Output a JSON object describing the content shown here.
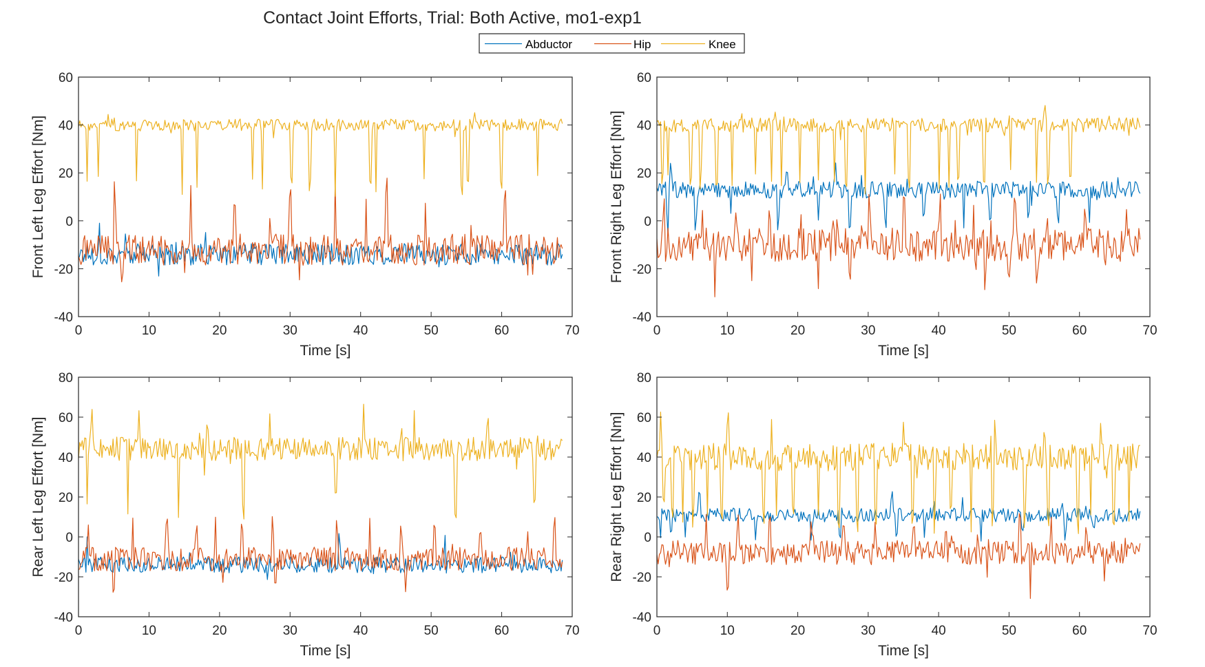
{
  "chart_data": {
    "type": "line",
    "title": "Contact Joint Efforts,  Trial: Both Active, mo1-exp1",
    "legend": {
      "placement": "top-center",
      "entries": [
        {
          "name": "Abductor",
          "color": "#0072BD"
        },
        {
          "name": "Hip",
          "color": "#D95319"
        },
        {
          "name": "Knee",
          "color": "#EDB120"
        }
      ]
    },
    "panels": [
      {
        "ylabel": "Front Left Leg Effort  [Nm]",
        "xlabel": "Time [s]",
        "xlim": [
          0,
          70
        ],
        "ylim": [
          -40,
          60
        ],
        "xticks": [
          "0",
          "10",
          "20",
          "30",
          "40",
          "50",
          "60",
          "70"
        ],
        "yticks": [
          "60",
          "40",
          "20",
          "0",
          "-20",
          "-40"
        ],
        "grid": false,
        "series": [
          {
            "name": "Abductor",
            "mean": -14,
            "amp": 4.5,
            "dips": [],
            "spikes": [
              3
            ],
            "dipDepth": 0,
            "spikeHeight": 12
          },
          {
            "name": "Hip",
            "mean": -12,
            "amp": 6.5,
            "dips": [
              6.2,
              63.7
            ],
            "spikes": [
              5.2,
              15.9,
              22.1,
              30.0,
              36.4,
              40.8,
              43.7,
              49.2,
              60.5
            ],
            "dipDepth": 16,
            "spikeHeight": 22
          },
          {
            "name": "Knee",
            "mean": 40,
            "amp": 2.5,
            "dips": [
              1.2,
              2.8,
              8.2,
              14.7,
              16.8,
              24.7,
              26.1,
              30.2,
              32.8,
              36.4,
              41.4,
              42.2,
              49.0,
              54.3,
              55.2,
              59.9,
              65.1
            ],
            "spikes": [],
            "dipDepth": 25,
            "spikeHeight": 0
          }
        ]
      },
      {
        "ylabel": "Front Right Leg Effort  [Nm]",
        "xlabel": "Time [s]",
        "xlim": [
          0,
          70
        ],
        "ylim": [
          -40,
          60
        ],
        "xticks": [
          "0",
          "10",
          "20",
          "30",
          "40",
          "50",
          "60",
          "70"
        ],
        "yticks": [
          "60",
          "40",
          "20",
          "0",
          "-20",
          "-40"
        ],
        "grid": false,
        "series": [
          {
            "name": "Abductor",
            "mean": 13,
            "amp": 3.5,
            "dips": [
              1.5,
              5.5,
              10.5,
              17.2,
              22.9,
              27.4,
              32.5,
              37.9,
              43.6,
              47.3,
              52.8,
              57.0,
              61.4
            ],
            "spikes": [
              2.0,
              18.5,
              25.3
            ],
            "dipDepth": 14,
            "spikeHeight": 9
          },
          {
            "name": "Hip",
            "mean": -10,
            "amp": 7,
            "dips": [
              8.2,
              13.4,
              22.9,
              27.4,
              46.6,
              50.0,
              54.0
            ],
            "spikes": [
              1.0,
              6.5,
              11.2,
              16.0,
              20.5,
              25.0,
              30.2,
              35.1,
              40.2,
              45.0,
              50.8,
              55.5,
              60.8
            ],
            "dipDepth": 14,
            "spikeHeight": 15
          },
          {
            "name": "Knee",
            "mean": 40,
            "amp": 3,
            "dips": [
              0.8,
              1.6,
              4.8,
              6.2,
              8.5,
              10.7,
              14.0,
              16.3,
              17.7,
              20.3,
              22.9,
              25.2,
              26.9,
              29.6,
              33.8,
              35.8,
              40.1,
              41.5,
              42.8,
              46.5,
              50.2,
              53.9,
              55.6,
              58.7
            ],
            "spikes": [
              55.0
            ],
            "dipDepth": 23,
            "spikeHeight": 7
          }
        ]
      },
      {
        "ylabel": "Rear Left Leg Effort  [Nm]",
        "xlabel": "Time [s]",
        "xlim": [
          0,
          70
        ],
        "ylim": [
          -40,
          80
        ],
        "xticks": [
          "0",
          "10",
          "20",
          "30",
          "40",
          "50",
          "60",
          "70"
        ],
        "yticks": [
          "80",
          "60",
          "40",
          "20",
          "0",
          "-20",
          "-40"
        ],
        "grid": false,
        "series": [
          {
            "name": "Abductor",
            "mean": -14,
            "amp": 4,
            "dips": [],
            "spikes": [
              1.2,
              37.0,
              52.0
            ],
            "dipDepth": 0,
            "spikeHeight": 12
          },
          {
            "name": "Hip",
            "mean": -11,
            "amp": 6,
            "dips": [
              5.0,
              18.9,
              27.9,
              46.5
            ],
            "spikes": [
              1.4,
              7.7,
              12.5,
              16.7,
              19.4,
              23.2,
              27.6,
              36.7,
              41.3,
              45.8,
              50.5,
              57.0,
              63.7,
              67.5
            ],
            "dipDepth": 12,
            "spikeHeight": 18
          },
          {
            "name": "Knee",
            "mean": 44,
            "amp": 6,
            "dips": [
              1.2,
              7.0,
              14.2,
              23.4,
              36.5,
              53.5,
              64.7
            ],
            "spikes": [
              1.8,
              8.6,
              18.3,
              27.1,
              40.4,
              47.6,
              58.0
            ],
            "dipDepth": 30,
            "spikeHeight": 16
          }
        ]
      },
      {
        "ylabel": "Rear Right Leg Effort  [Nm]",
        "xlabel": "Time [s]",
        "xlim": [
          0,
          70
        ],
        "ylim": [
          -40,
          80
        ],
        "xticks": [
          "0",
          "10",
          "20",
          "30",
          "40",
          "50",
          "60",
          "70"
        ],
        "yticks": [
          "80",
          "60",
          "40",
          "20",
          "0",
          "-20",
          "-40"
        ],
        "grid": false,
        "series": [
          {
            "name": "Abductor",
            "mean": 11,
            "amp": 3.5,
            "dips": [
              0.5,
              2.0,
              4.0,
              14.0,
              22.0,
              26.0,
              34.0,
              38.0,
              46.0,
              52.0,
              58.0,
              62.0
            ],
            "spikes": [
              6.0,
              33.3,
              43.4
            ],
            "dipDepth": 9,
            "spikeHeight": 9
          },
          {
            "name": "Hip",
            "mean": -8,
            "amp": 6,
            "dips": [
              10.1,
              46.9,
              53.0,
              63.5
            ],
            "spikes": [
              3.0,
              7.0,
              11.5,
              16.0,
              22.0,
              26.5,
              31.0,
              36.5,
              41.0,
              45.5,
              51.5,
              56.0,
              61.0,
              66.5
            ],
            "dipDepth": 18,
            "spikeHeight": 13
          },
          {
            "name": "Knee",
            "mean": 40,
            "amp": 7,
            "dips": [
              1.0,
              2.2,
              3.7,
              5.2,
              7.2,
              9.2,
              15.1,
              17.0,
              19.3,
              22.9,
              25.8,
              28.4,
              31.1,
              36.3,
              39.5,
              41.7,
              44.6,
              47.7,
              52.2,
              55.6,
              59.8,
              61.6,
              64.8,
              67.0
            ],
            "spikes": [
              0.5,
              10.1,
              16.3,
              35.0,
              48.0,
              55.0,
              63.0
            ],
            "dipDepth": 30,
            "spikeHeight": 16
          }
        ]
      }
    ]
  }
}
